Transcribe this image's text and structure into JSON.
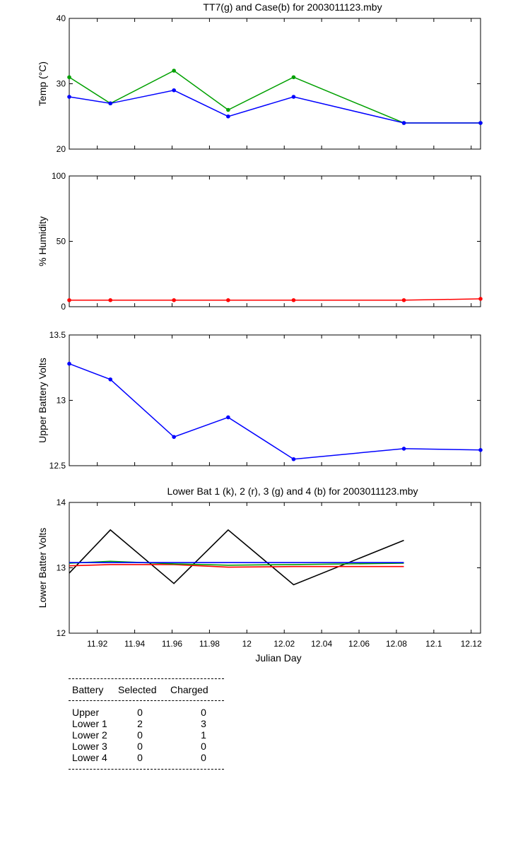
{
  "colors": {
    "green": "#00a000",
    "blue": "#0000ff",
    "red": "#ff0000",
    "black": "#000000"
  },
  "chart_data": [
    {
      "type": "line",
      "title": "TT7(g) and Case(b) for 2003011123.mby",
      "xlabel": "",
      "ylabel": "Temp  (°C)",
      "xlim": [
        11.905,
        12.125
      ],
      "ylim": [
        20,
        40
      ],
      "yticks": [
        20,
        30,
        40
      ],
      "markers": true,
      "series": [
        {
          "color": "green",
          "x": [
            11.905,
            11.927,
            11.961,
            11.99,
            12.025,
            12.084,
            12.125
          ],
          "y": [
            31,
            27,
            32,
            26,
            31,
            24,
            24
          ]
        },
        {
          "color": "blue",
          "x": [
            11.905,
            11.927,
            11.961,
            11.99,
            12.025,
            12.084,
            12.125
          ],
          "y": [
            28,
            27,
            29,
            25,
            28,
            24,
            24
          ]
        }
      ]
    },
    {
      "type": "line",
      "title": "",
      "xlabel": "",
      "ylabel": "% Humidity",
      "xlim": [
        11.905,
        12.125
      ],
      "ylim": [
        0,
        100
      ],
      "yticks": [
        0,
        50,
        100
      ],
      "markers": true,
      "series": [
        {
          "color": "red",
          "x": [
            11.905,
            11.927,
            11.961,
            11.99,
            12.025,
            12.084,
            12.125
          ],
          "y": [
            5,
            5,
            5,
            5,
            5,
            5,
            6
          ]
        }
      ]
    },
    {
      "type": "line",
      "title": "",
      "xlabel": "",
      "ylabel": "Upper Battery Volts",
      "xlim": [
        11.905,
        12.125
      ],
      "ylim": [
        12.5,
        13.5
      ],
      "yticks": [
        12.5,
        13,
        13.5
      ],
      "markers": true,
      "series": [
        {
          "color": "blue",
          "x": [
            11.905,
            11.927,
            11.961,
            11.99,
            12.025,
            12.084,
            12.125
          ],
          "y": [
            13.28,
            13.16,
            12.72,
            12.87,
            12.55,
            12.63,
            12.62
          ]
        }
      ]
    },
    {
      "type": "line",
      "title": "Lower Bat 1 (k), 2 (r), 3 (g) and 4 (b) for 2003011123.mby",
      "xlabel": "Julian Day",
      "ylabel": "Lower Batter Volts",
      "xlim": [
        11.905,
        12.125
      ],
      "ylim": [
        12,
        14
      ],
      "yticks": [
        12,
        13,
        14
      ],
      "xticks": [
        11.92,
        11.94,
        11.96,
        11.98,
        12,
        12.02,
        12.04,
        12.06,
        12.08,
        12.1,
        12.12
      ],
      "markers": false,
      "series": [
        {
          "color": "black",
          "x": [
            11.905,
            11.927,
            11.961,
            11.99,
            12.025,
            12.084
          ],
          "y": [
            12.92,
            13.58,
            12.76,
            13.58,
            12.74,
            13.42
          ]
        },
        {
          "color": "red",
          "x": [
            11.905,
            11.927,
            11.961,
            11.99,
            12.025,
            12.084
          ],
          "y": [
            13.03,
            13.05,
            13.05,
            13.01,
            13.02,
            13.02
          ]
        },
        {
          "color": "green",
          "x": [
            11.905,
            11.927,
            11.961,
            11.99,
            12.025,
            12.084
          ],
          "y": [
            13.07,
            13.1,
            13.06,
            13.04,
            13.05,
            13.07
          ]
        },
        {
          "color": "blue",
          "x": [
            11.905,
            11.927,
            11.961,
            11.99,
            12.025,
            12.084
          ],
          "y": [
            13.08,
            13.08,
            13.08,
            13.08,
            13.08,
            13.08
          ]
        }
      ]
    }
  ],
  "battery_table": {
    "headers": [
      "Battery",
      "Selected",
      "Charged"
    ],
    "rows": [
      {
        "battery": "Upper",
        "selected": "0",
        "charged": "0"
      },
      {
        "battery": "Lower 1",
        "selected": "2",
        "charged": "3"
      },
      {
        "battery": "Lower 2",
        "selected": "0",
        "charged": "1"
      },
      {
        "battery": "Lower 3",
        "selected": "0",
        "charged": "0"
      },
      {
        "battery": "Lower 4",
        "selected": "0",
        "charged": "0"
      }
    ]
  }
}
